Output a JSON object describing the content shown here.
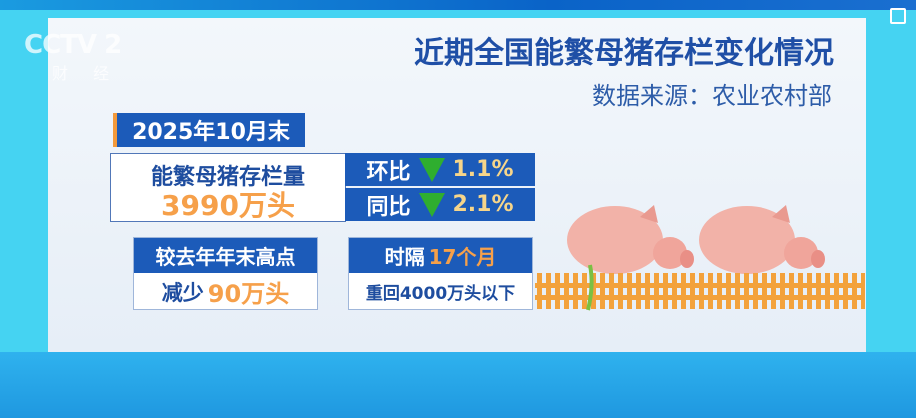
{
  "channel_logo": {
    "text": "CCTV 2",
    "sub": "财 经"
  },
  "title": "近期全国能繁母猪存栏变化情况",
  "source": "数据来源：农业农村部",
  "date_label": "2025年10月末",
  "inventory": {
    "label": "能繁母猪存栏量",
    "value": "3990万头"
  },
  "mom": {
    "label": "环比",
    "direction": "down",
    "value": "1.1%"
  },
  "yoy": {
    "label": "同比",
    "direction": "down",
    "value": "2.1%"
  },
  "vs_peak": {
    "header": "较去年年末高点",
    "prefix": "减少",
    "value": "90万头"
  },
  "interval": {
    "prefix": "时隔",
    "value": "17个月",
    "body": "重回4000万头以下"
  },
  "colors": {
    "accent_blue": "#1c5bb9",
    "highlight_orange": "#f6a04a",
    "down_arrow": "#2fae2f"
  }
}
